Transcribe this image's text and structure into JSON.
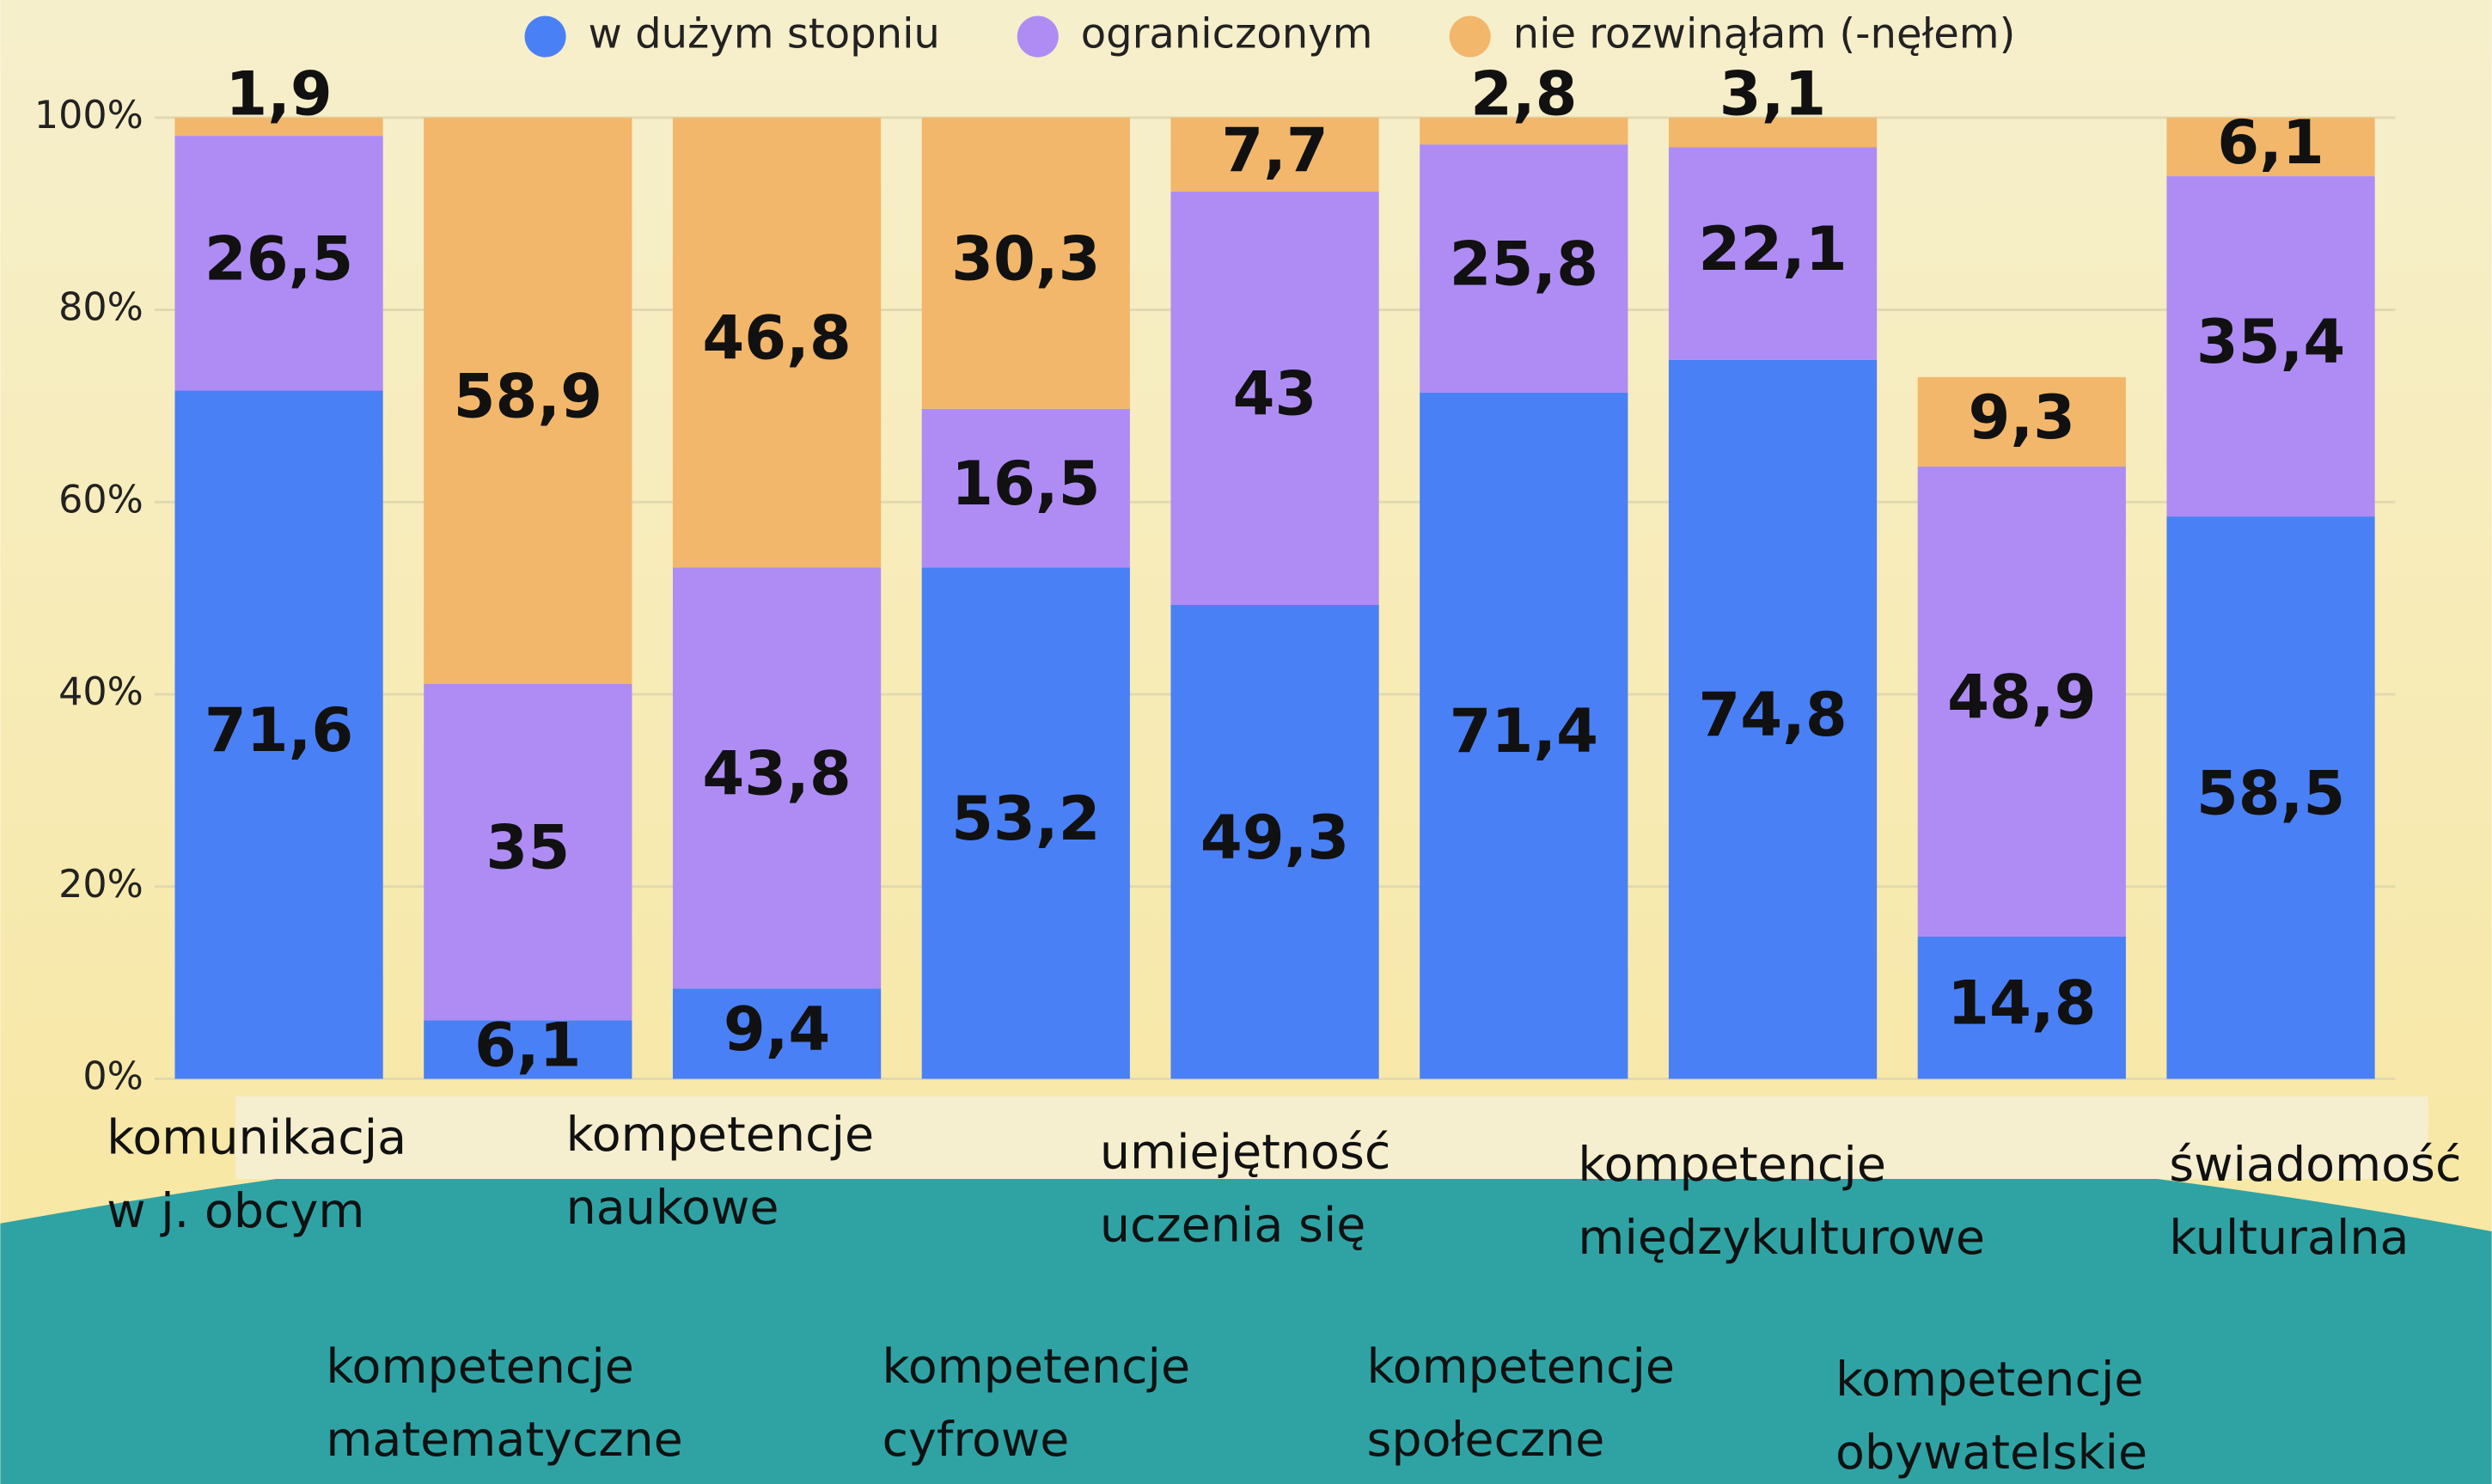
{
  "chart_data": {
    "type": "stacked_bar",
    "categories": [
      [
        "komunikacja",
        "w j. obcym"
      ],
      [
        "kompetencje",
        "matematyczne"
      ],
      [
        "kompetencje",
        "naukowe"
      ],
      [
        "kompetencje",
        "cyfrowe"
      ],
      [
        "umiejętność",
        "uczenia się"
      ],
      [
        "kompetencje",
        "społeczne"
      ],
      [
        "kompetencje",
        "międzykulturowe"
      ],
      [
        "kompetencje",
        "obywatelskie"
      ],
      [
        "świadomość",
        "kulturalna"
      ]
    ],
    "series": [
      {
        "name": "w dużym stopniu",
        "color": "#4a80f5",
        "values": [
          71.6,
          6.1,
          9.4,
          53.2,
          49.3,
          71.4,
          74.8,
          14.8,
          58.5
        ],
        "value_labels": [
          "71,6",
          "6,1",
          "9,4",
          "53,2",
          "49,3",
          "71,4",
          "74,8",
          "14,8",
          "58,5"
        ]
      },
      {
        "name": "ograniczonym",
        "color": "#ae8cf4",
        "values": [
          26.5,
          35,
          43.8,
          16.5,
          43,
          25.8,
          22.1,
          48.9,
          35.4
        ],
        "value_labels": [
          "26,5",
          "35",
          "43,8",
          "16,5",
          "43",
          "25,8",
          "22,1",
          "48,9",
          "35,4"
        ]
      },
      {
        "name": "nie rozwinąłam (-nęłem)",
        "color": "#f2b76b",
        "values": [
          1.9,
          58.9,
          46.8,
          30.3,
          7.7,
          2.8,
          3.1,
          9.3,
          6.1
        ],
        "value_labels": [
          "1,9",
          "58,9",
          "46,8",
          "30,3",
          "7,7",
          "2,8",
          "3,1",
          "9,3",
          "6,1"
        ]
      }
    ],
    "ylim": [
      0,
      100
    ],
    "yticks": [
      {
        "value": 0,
        "label": "0%"
      },
      {
        "value": 20,
        "label": "20%"
      },
      {
        "value": 40,
        "label": "40%"
      },
      {
        "value": 60,
        "label": "60%"
      },
      {
        "value": 80,
        "label": "80%"
      },
      {
        "value": 100,
        "label": "100%"
      }
    ],
    "grid": true,
    "legend": "top"
  }
}
